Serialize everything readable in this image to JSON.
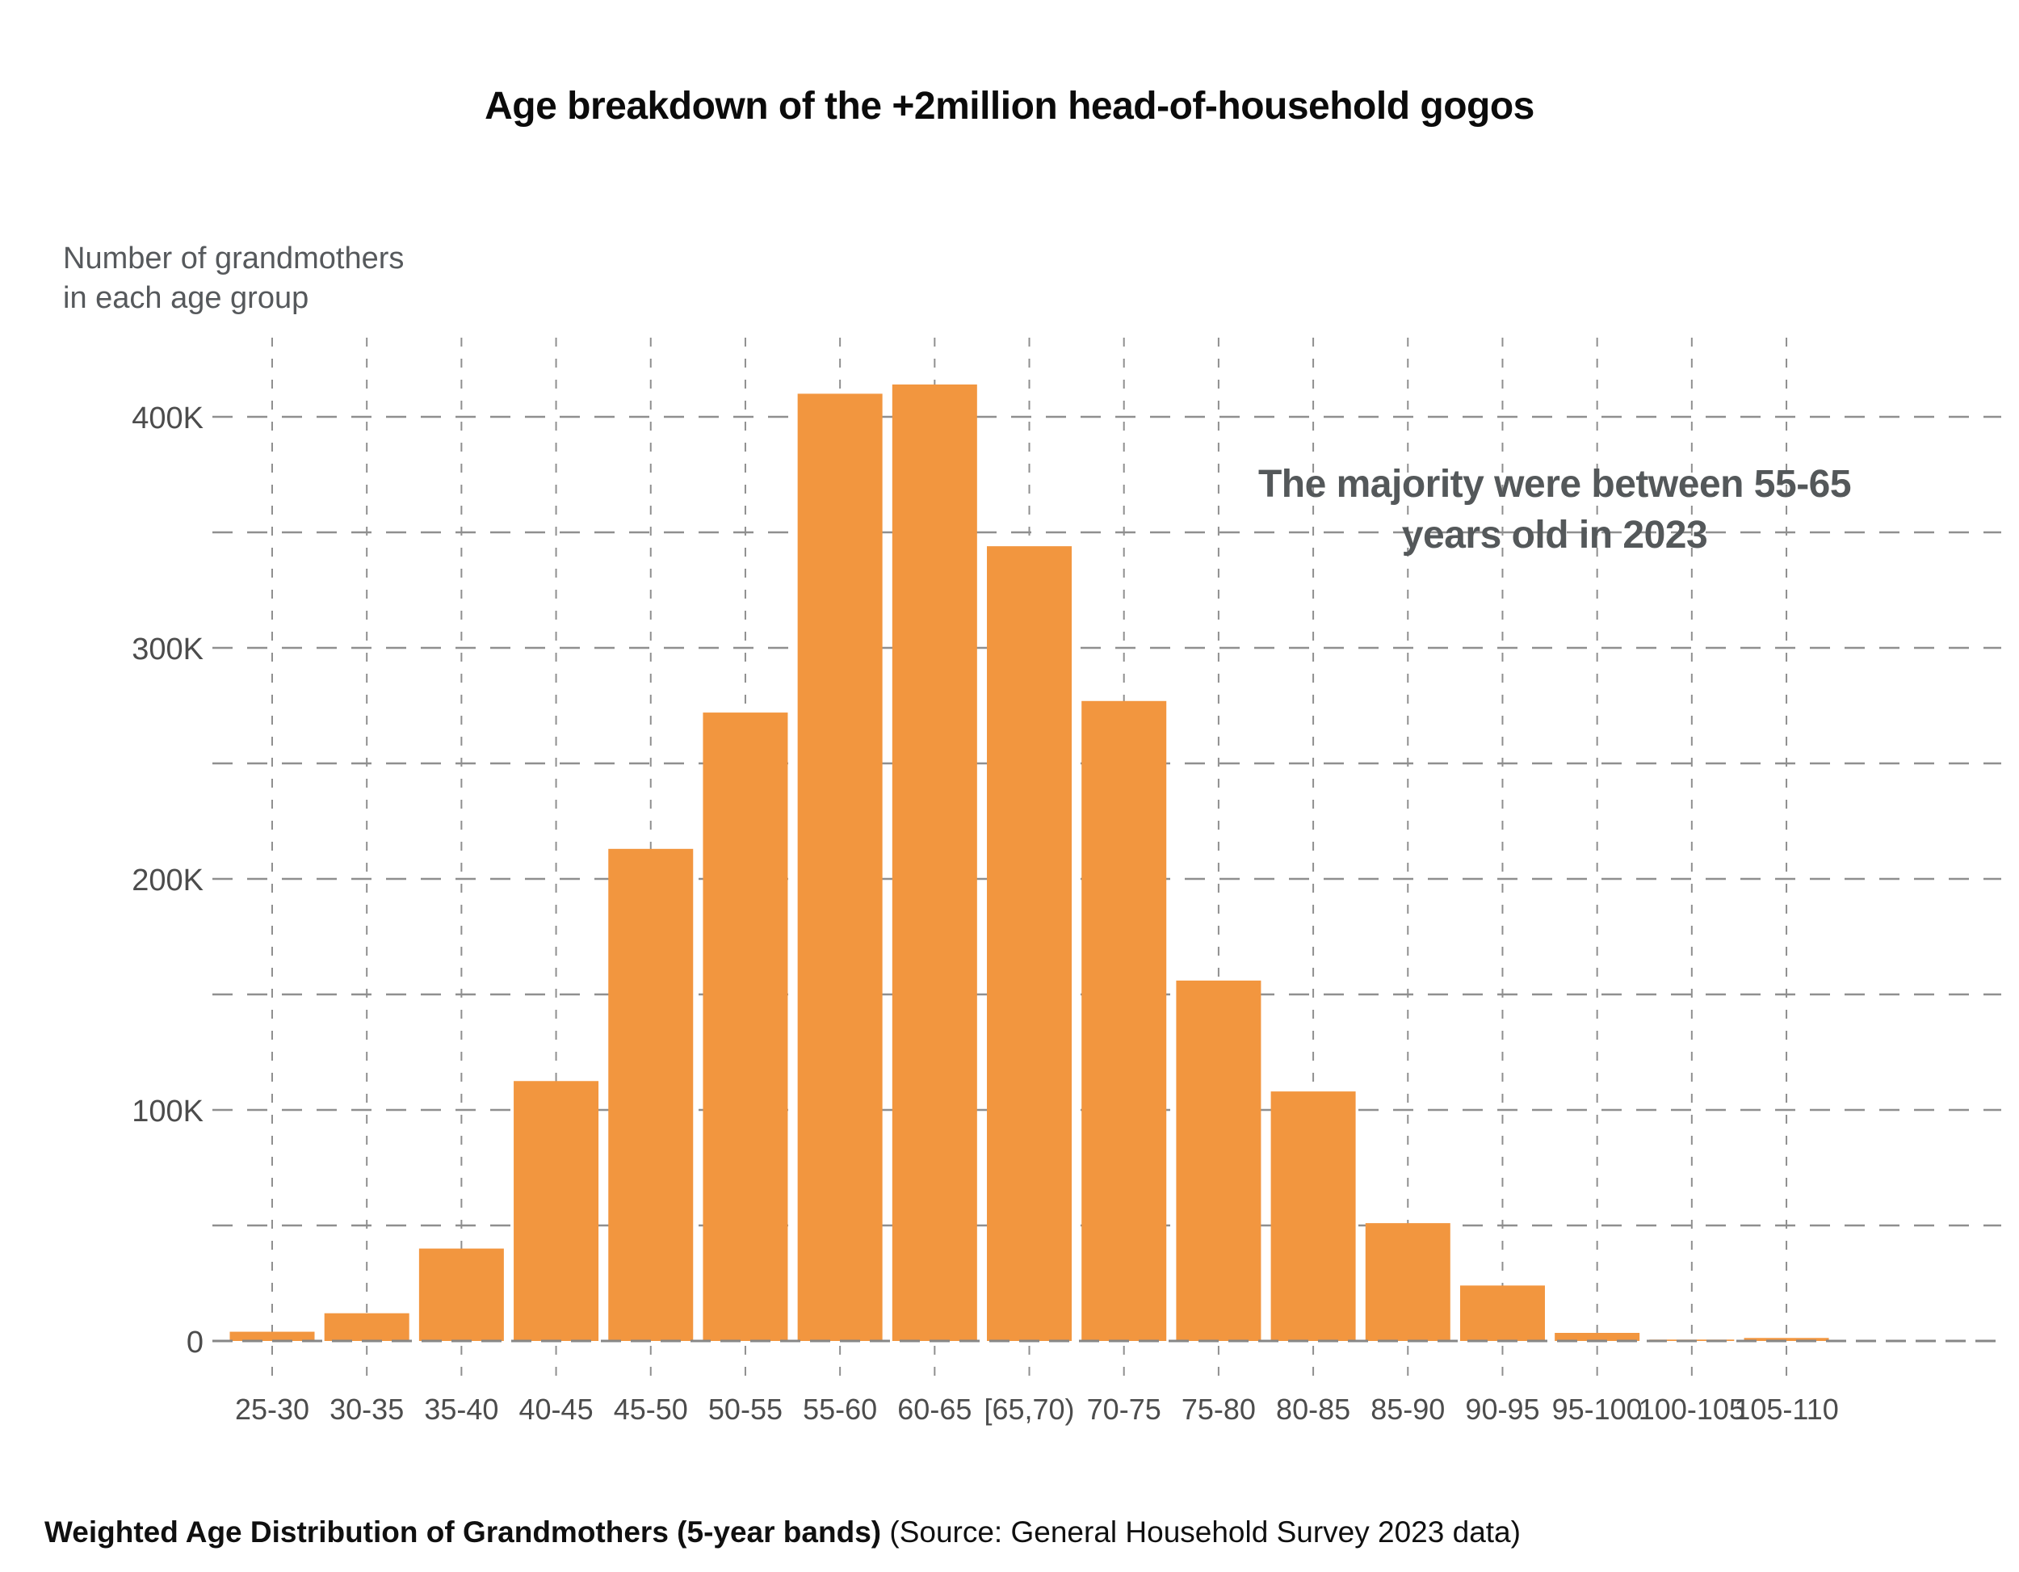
{
  "title": "Age breakdown of the +2million head-of-household gogos",
  "y_axis_title": {
    "line1": "Number of grandmothers",
    "line2": "in each age group"
  },
  "annotation": {
    "line1": "The majority were between 55-65",
    "line2": "years old in 2023"
  },
  "caption": {
    "bold_part": "Weighted Age Distribution of Grandmothers (5-year bands)",
    "regular_part": " (Source: General Household Survey 2023 data)"
  },
  "chart_data": {
    "type": "bar",
    "title": "Age breakdown of the +2million head-of-household gogos",
    "xlabel": "",
    "ylabel": "Number of grandmothers in each age group",
    "categories": [
      "25-30",
      "30-35",
      "35-40",
      "40-45",
      "45-50",
      "50-55",
      "55-60",
      "60-65",
      "[65,70)",
      "70-75",
      "75-80",
      "80-85",
      "85-90",
      "90-95",
      "95-100",
      "100-105",
      "105-110"
    ],
    "values": [
      4000,
      12000,
      40000,
      112500,
      213000,
      272000,
      410000,
      414000,
      344000,
      277000,
      156000,
      108000,
      51000,
      24000,
      3500,
      600,
      1300
    ],
    "ytick_values": [
      0,
      100000,
      200000,
      300000,
      400000
    ],
    "ytick_labels": [
      "0",
      "100K",
      "200K",
      "300K",
      "400K"
    ],
    "minor_grid_step": 50000,
    "ylim": [
      0,
      434000
    ],
    "grid": "dashed gray, both axes, under bars",
    "legend": "none",
    "bar_color": "#F2963F",
    "grid_color": "#8f8f8f",
    "tick_label_color": "#4c4c4c",
    "annotation_text": "The majority were between 55-65 years old in 2023",
    "source_note": "Weighted Age Distribution of Grandmothers (5-year bands) (Source: General Household Survey 2023 data)"
  }
}
